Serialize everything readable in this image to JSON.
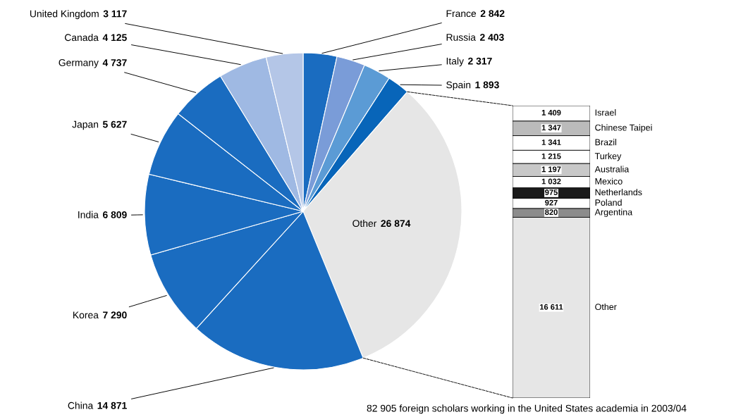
{
  "chart_data": [
    {
      "type": "pie",
      "categories": [
        "France",
        "Russia",
        "Italy",
        "Spain",
        "Other",
        "China",
        "Korea",
        "India",
        "Japan",
        "Germany",
        "Canada",
        "United Kingdom"
      ],
      "values": [
        2842,
        2403,
        2317,
        1893,
        26874,
        14871,
        7290,
        6809,
        5627,
        4737,
        4125,
        3117
      ],
      "value_labels": [
        "2 842",
        "2 403",
        "2 317",
        "1 893",
        "26 874",
        "14 871",
        "7 290",
        "6 809",
        "5 627",
        "4 737",
        "4 125",
        "3 117"
      ],
      "colors": [
        "#1a6cc0",
        "#7a9cd8",
        "#5b9bd5",
        "#0865b9",
        "#e6e6e6",
        "#1a6cc0",
        "#1a6cc0",
        "#1a6cc0",
        "#1a6cc0",
        "#1a6cc0",
        "#9fb9e3",
        "#b4c6e7"
      ],
      "annotations": [
        "82 905 foreign scholars working in the United States academia in 2003/04"
      ]
    },
    {
      "type": "bar",
      "stacked": true,
      "categories": [
        null
      ],
      "series": [
        {
          "name": "Other",
          "color": "#e6e6e6",
          "values": [
            16611
          ],
          "value_labels": [
            "16 611"
          ]
        },
        {
          "name": "Argentina",
          "color": "#8c8c8c",
          "values": [
            820
          ],
          "value_labels": [
            "820"
          ]
        },
        {
          "name": "Poland",
          "color": "#ffffff",
          "values": [
            927
          ],
          "value_labels": [
            "927"
          ]
        },
        {
          "name": "Netherlands",
          "color": "#1a1a1a",
          "values": [
            975
          ],
          "value_labels": [
            "975"
          ]
        },
        {
          "name": "Mexico",
          "color": "#ffffff",
          "values": [
            1032
          ],
          "value_labels": [
            "1 032"
          ]
        },
        {
          "name": "Australia",
          "color": "#c8c8c8",
          "values": [
            1197
          ],
          "value_labels": [
            "1 197"
          ]
        },
        {
          "name": "Turkey",
          "color": "#ffffff",
          "values": [
            1215
          ],
          "value_labels": [
            "1 215"
          ]
        },
        {
          "name": "Brazil",
          "color": "#ffffff",
          "values": [
            1341
          ],
          "value_labels": [
            "1 341"
          ]
        },
        {
          "name": "Chinese Taipei",
          "color": "#bbbbbb",
          "values": [
            1347
          ],
          "value_labels": [
            "1 347"
          ]
        },
        {
          "name": "Israel",
          "color": "#ffffff",
          "values": [
            1409
          ],
          "value_labels": [
            "1 409"
          ]
        }
      ]
    }
  ]
}
